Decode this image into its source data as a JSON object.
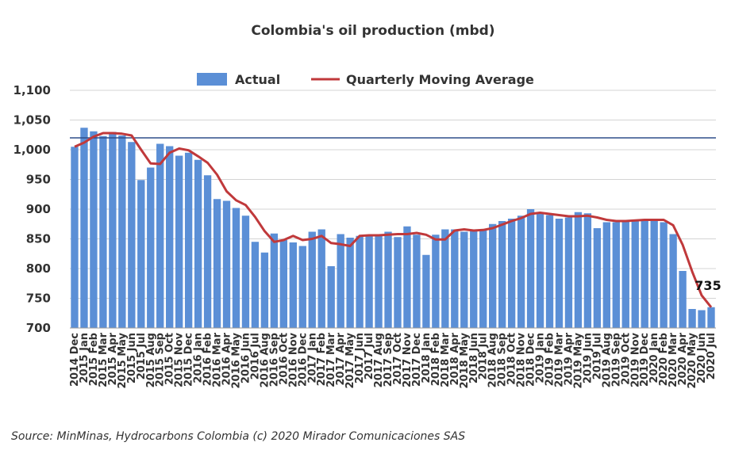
{
  "chart_data": {
    "type": "bar",
    "title": "Colombia's oil production (mbd)",
    "ylim": [
      700,
      1100
    ],
    "yticks": [
      "700",
      "750",
      "800",
      "850",
      "900",
      "950",
      "1,000",
      "1,050",
      "1,100"
    ],
    "reference_line": 1020,
    "grid": true,
    "legend_position": "top",
    "categories": [
      "2014 Dec",
      "2015 Jan",
      "2015 Feb",
      "2015 Mar",
      "2015 Apr",
      "2015 May",
      "2015 Jun",
      "2015 Jul",
      "2015 Aug",
      "2015 Sep",
      "2015 Oct",
      "2015 Nov",
      "2015 Dec",
      "2016 Jan",
      "2016 Feb",
      "2016 Mar",
      "2016 Apr",
      "2016 May",
      "2016 Jun",
      "2016 Jul",
      "2016 Aug",
      "2016 Sep",
      "2016 Oct",
      "2016 Nov",
      "2016 Dec",
      "2017 Jan",
      "2017 Feb",
      "2017 Mar",
      "2017 Apr",
      "2017 May",
      "2017 Jun",
      "2017 Jul",
      "2017 Aug",
      "2017 Sep",
      "2017 Oct",
      "2017 Nov",
      "2017 Dec",
      "2018 Jan",
      "2018 Feb",
      "2018 Mar",
      "2018 Apr",
      "2018 May",
      "2018 Jun",
      "2018 Jul",
      "2018 Aug",
      "2018 Sep",
      "2018 Oct",
      "2018 Nov",
      "2018 Dec",
      "2019 Jan",
      "2019 Feb",
      "2019 Mar",
      "2019 Apr",
      "2019 May",
      "2019 Jun",
      "2019 Jul",
      "2019 Aug",
      "2019 Sep",
      "2019 Oct",
      "2019 Nov",
      "2019 Dec",
      "2020 Jan",
      "2020 Feb",
      "2020 Mar",
      "2020 Apr",
      "2020 May",
      "2020 Jun",
      "2020 Jul"
    ],
    "series": [
      {
        "name": "Actual",
        "type": "bar",
        "color": "#5b8fd6",
        "values": [
          1005,
          1037,
          1031,
          1023,
          1030,
          1024,
          1013,
          949,
          970,
          1010,
          1006,
          990,
          995,
          983,
          957,
          917,
          914,
          902,
          889,
          845,
          827,
          859,
          848,
          844,
          838,
          862,
          866,
          804,
          858,
          852,
          855,
          856,
          856,
          862,
          853,
          871,
          857,
          823,
          857,
          866,
          866,
          862,
          866,
          866,
          875,
          880,
          884,
          889,
          900,
          894,
          890,
          884,
          886,
          895,
          893,
          868,
          878,
          878,
          880,
          880,
          881,
          880,
          878,
          858,
          796,
          732,
          730,
          735
        ]
      },
      {
        "name": "Quarterly Moving Average",
        "type": "line",
        "color": "#c0393b",
        "values": [
          1005,
          1012,
          1022,
          1028,
          1028,
          1027,
          1024,
          1000,
          977,
          976,
          995,
          1002,
          999,
          989,
          978,
          958,
          930,
          915,
          907,
          887,
          863,
          845,
          848,
          855,
          848,
          850,
          855,
          843,
          841,
          838,
          855,
          856,
          856,
          857,
          858,
          858,
          860,
          857,
          849,
          849,
          864,
          866,
          864,
          865,
          868,
          874,
          880,
          885,
          892,
          894,
          892,
          890,
          888,
          888,
          889,
          886,
          882,
          880,
          880,
          881,
          882,
          882,
          882,
          873,
          840,
          795,
          755,
          735
        ]
      }
    ],
    "annotations": [
      {
        "category": "2020 Jul",
        "label": "735"
      }
    ]
  },
  "source": "Source: MinMinas, Hydrocarbons Colombia (c) 2020 Mirador Comunicaciones SAS"
}
